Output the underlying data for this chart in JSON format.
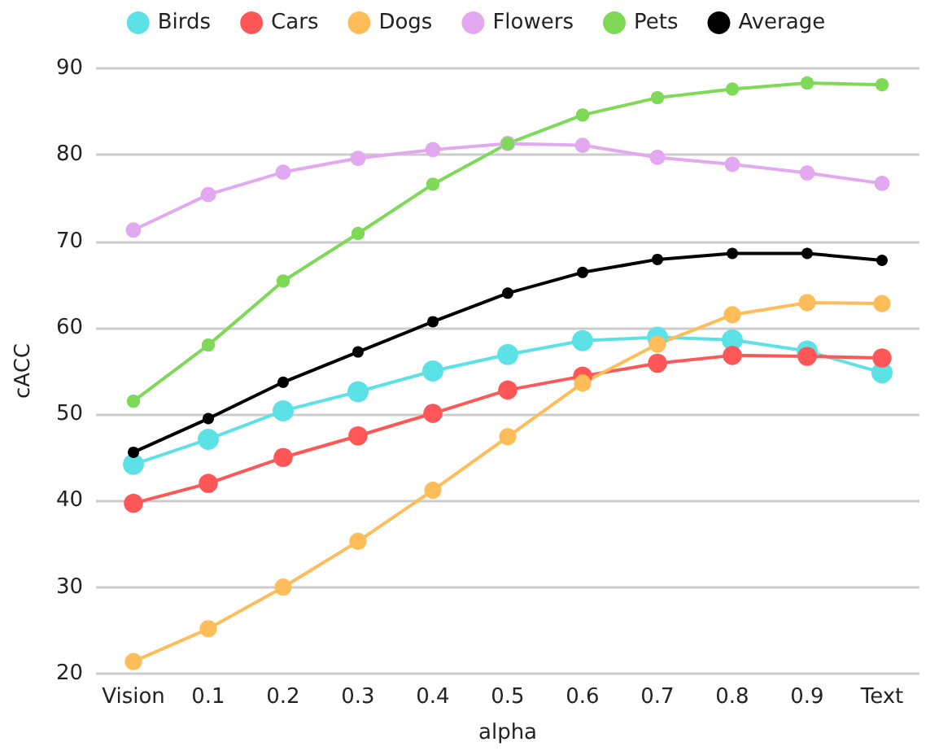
{
  "chart_data": {
    "type": "line",
    "xlabel": "alpha",
    "ylabel": "cACC",
    "categories": [
      "Vision",
      "0.1",
      "0.2",
      "0.3",
      "0.4",
      "0.5",
      "0.6",
      "0.7",
      "0.8",
      "0.9",
      "Text"
    ],
    "series": [
      {
        "name": "Birds",
        "color": "#5ce1e6",
        "values": [
          44.2,
          47.1,
          50.4,
          52.6,
          55.0,
          56.9,
          58.5,
          58.9,
          58.6,
          57.3,
          54.8
        ]
      },
      {
        "name": "Cars",
        "color": "#ff5757",
        "values": [
          39.7,
          42.0,
          45.0,
          47.5,
          50.1,
          52.8,
          54.4,
          55.9,
          56.8,
          56.7,
          56.5
        ]
      },
      {
        "name": "Dogs",
        "color": "#ffbd59",
        "values": [
          21.4,
          25.2,
          30.0,
          35.3,
          41.2,
          47.4,
          53.6,
          58.1,
          61.5,
          62.9,
          62.8
        ]
      },
      {
        "name": "Flowers",
        "color": "#e2a9f1",
        "values": [
          71.3,
          75.4,
          78.0,
          79.6,
          80.6,
          81.3,
          81.1,
          79.7,
          78.9,
          77.9,
          76.7
        ]
      },
      {
        "name": "Pets",
        "color": "#7ed957",
        "values": [
          51.5,
          58.0,
          65.4,
          70.9,
          76.6,
          81.3,
          84.6,
          86.6,
          87.6,
          88.3,
          88.1
        ]
      },
      {
        "name": "Average",
        "color": "#000000",
        "values": [
          45.6,
          49.5,
          53.7,
          57.2,
          60.7,
          64.0,
          66.4,
          67.9,
          68.6,
          68.6,
          67.8
        ]
      }
    ],
    "ylim": [
      20,
      90
    ],
    "yticks": [
      20,
      30,
      40,
      50,
      60,
      70,
      80,
      90
    ],
    "grid": "y",
    "legend": "top",
    "marker": "circle",
    "line_style": "solid"
  }
}
